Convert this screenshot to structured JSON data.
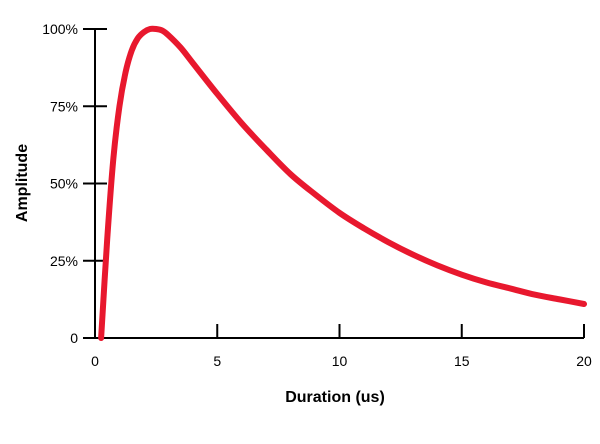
{
  "chart_data": {
    "type": "line",
    "xlabel": "Duration (us)",
    "ylabel": "Amplitude",
    "xlim": [
      0,
      20
    ],
    "ylim": [
      0,
      100
    ],
    "x_ticks": [
      0,
      5,
      10,
      15,
      20
    ],
    "x_tick_labels": [
      "0",
      "5",
      "10",
      "15",
      "20"
    ],
    "y_ticks": [
      0,
      25,
      50,
      75,
      100
    ],
    "y_tick_labels": [
      "0",
      "25%",
      "50%",
      "75%",
      "100%"
    ],
    "grid": false,
    "series": [
      {
        "color": "#e8182e",
        "x": [
          0.25,
          0.5,
          0.75,
          1.0,
          1.25,
          1.5,
          1.75,
          2.0,
          2.25,
          2.5,
          2.75,
          3.0,
          3.5,
          4.0,
          5.0,
          6.0,
          7.0,
          8.0,
          9.0,
          10.0,
          11.0,
          12.0,
          13.0,
          14.0,
          15.0,
          16.0,
          17.0,
          18.0,
          19.0,
          20.0
        ],
        "y": [
          0,
          32,
          58,
          75,
          86,
          93,
          97,
          99,
          100,
          100,
          99.5,
          98,
          94,
          89,
          79,
          69.5,
          61,
          53,
          46.5,
          40.5,
          35.5,
          31,
          27,
          23.5,
          20.5,
          18,
          16,
          14,
          12.5,
          11
        ]
      }
    ]
  }
}
